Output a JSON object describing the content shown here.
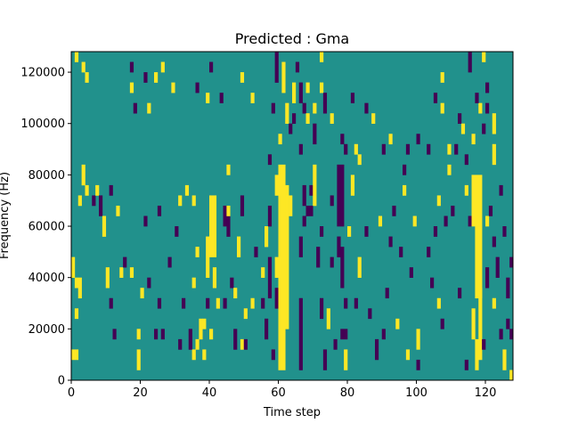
{
  "chart_data": {
    "type": "heatmap",
    "title": "Predicted : Gma",
    "xlabel": "Time step",
    "ylabel": "Frequency (Hz)",
    "xlim": [
      0,
      128
    ],
    "ylim": [
      0,
      128000
    ],
    "xticks": [
      0,
      20,
      40,
      60,
      80,
      100,
      120
    ],
    "yticks": [
      0,
      20000,
      40000,
      60000,
      80000,
      100000,
      120000
    ],
    "grid": false,
    "colors": {
      "background": "#21918c",
      "positive": "#fde725",
      "negative": "#440154"
    },
    "value_levels": {
      "background": 0,
      "positive": 1,
      "negative": -1
    },
    "cells_format": [
      "time_start",
      "time_steps",
      "freq_start_hz",
      "freq_end_hz",
      "value"
    ],
    "cells": [
      [
        1,
        1,
        124000,
        128000,
        1
      ],
      [
        3,
        1,
        120000,
        124000,
        1
      ],
      [
        4,
        1,
        116000,
        120000,
        1
      ],
      [
        17,
        1,
        120000,
        124000,
        -1
      ],
      [
        26,
        1,
        120000,
        124000,
        1
      ],
      [
        21,
        1,
        116000,
        120000,
        -1
      ],
      [
        24,
        1,
        116000,
        120000,
        1
      ],
      [
        17,
        1,
        112000,
        116000,
        1
      ],
      [
        29,
        1,
        112000,
        116000,
        1
      ],
      [
        40,
        1,
        120000,
        124000,
        -1
      ],
      [
        39,
        1,
        108000,
        112000,
        1
      ],
      [
        43,
        1,
        108000,
        112000,
        -1
      ],
      [
        49,
        1,
        116000,
        120000,
        1
      ],
      [
        36,
        1,
        112000,
        116000,
        -1
      ],
      [
        18,
        1,
        104000,
        108000,
        -1
      ],
      [
        22,
        1,
        104000,
        108000,
        1
      ],
      [
        52,
        1,
        108000,
        112000,
        1
      ],
      [
        58,
        1,
        104000,
        108000,
        -1
      ],
      [
        59,
        1,
        116000,
        128000,
        -1
      ],
      [
        61,
        1,
        112000,
        124000,
        1
      ],
      [
        62,
        1,
        100000,
        108000,
        1
      ],
      [
        64,
        1,
        108000,
        116000,
        1
      ],
      [
        65,
        1,
        120000,
        124000,
        -1
      ],
      [
        66,
        1,
        108000,
        116000,
        -1
      ],
      [
        67,
        1,
        104000,
        108000,
        -1
      ],
      [
        68,
        1,
        112000,
        116000,
        1
      ],
      [
        70,
        1,
        104000,
        108000,
        1
      ],
      [
        72,
        1,
        112000,
        116000,
        1
      ],
      [
        73,
        1,
        104000,
        108000,
        -1
      ],
      [
        75,
        1,
        100000,
        104000,
        1
      ],
      [
        60,
        1,
        92000,
        96000,
        1
      ],
      [
        63,
        1,
        96000,
        100000,
        -1
      ],
      [
        64,
        1,
        100000,
        104000,
        -1
      ],
      [
        66,
        1,
        88000,
        92000,
        -1
      ],
      [
        68,
        1,
        100000,
        104000,
        1
      ],
      [
        70,
        1,
        92000,
        100000,
        -1
      ],
      [
        73,
        1,
        108000,
        112000,
        -1
      ],
      [
        72,
        1,
        124000,
        128000,
        1
      ],
      [
        78,
        1,
        92000,
        96000,
        -1
      ],
      [
        79,
        1,
        88000,
        92000,
        -1
      ],
      [
        81,
        1,
        108000,
        112000,
        -1
      ],
      [
        82,
        1,
        88000,
        92000,
        1
      ],
      [
        83,
        1,
        84000,
        88000,
        1
      ],
      [
        85,
        1,
        104000,
        108000,
        -1
      ],
      [
        87,
        1,
        100000,
        104000,
        1
      ],
      [
        90,
        1,
        88000,
        92000,
        -1
      ],
      [
        92,
        1,
        92000,
        96000,
        1
      ],
      [
        97,
        1,
        88000,
        92000,
        -1
      ],
      [
        96,
        1,
        80000,
        84000,
        -1
      ],
      [
        100,
        1,
        92000,
        96000,
        -1
      ],
      [
        103,
        1,
        88000,
        92000,
        -1
      ],
      [
        105,
        1,
        108000,
        112000,
        -1
      ],
      [
        107,
        1,
        104000,
        108000,
        1
      ],
      [
        107,
        1,
        116000,
        120000,
        1
      ],
      [
        109,
        1,
        88000,
        92000,
        1
      ],
      [
        109,
        1,
        80000,
        84000,
        1
      ],
      [
        111,
        1,
        88000,
        92000,
        -1
      ],
      [
        112,
        1,
        100000,
        104000,
        -1
      ],
      [
        113,
        1,
        96000,
        100000,
        1
      ],
      [
        114,
        1,
        84000,
        88000,
        -1
      ],
      [
        116,
        1,
        92000,
        96000,
        1
      ],
      [
        118,
        1,
        104000,
        108000,
        1
      ],
      [
        119,
        1,
        96000,
        100000,
        -1
      ],
      [
        120,
        1,
        112000,
        116000,
        -1
      ],
      [
        122,
        1,
        96000,
        104000,
        1
      ],
      [
        122,
        1,
        84000,
        92000,
        1
      ],
      [
        115,
        1,
        120000,
        128000,
        -1
      ],
      [
        119,
        1,
        124000,
        128000,
        1
      ],
      [
        117,
        1,
        108000,
        112000,
        -1
      ],
      [
        120,
        1,
        104000,
        108000,
        -1
      ],
      [
        0,
        1,
        40000,
        48000,
        1
      ],
      [
        1,
        1,
        36000,
        40000,
        1
      ],
      [
        2,
        1,
        32000,
        40000,
        1
      ],
      [
        1,
        1,
        24000,
        28000,
        1
      ],
      [
        0,
        2,
        8000,
        12000,
        1
      ],
      [
        2,
        1,
        68000,
        72000,
        1
      ],
      [
        3,
        1,
        76000,
        84000,
        1
      ],
      [
        4,
        1,
        72000,
        76000,
        1
      ],
      [
        6,
        1,
        68000,
        72000,
        -1
      ],
      [
        7,
        1,
        72000,
        76000,
        1
      ],
      [
        8,
        1,
        64000,
        72000,
        -1
      ],
      [
        9,
        1,
        56000,
        64000,
        1
      ],
      [
        10,
        1,
        36000,
        44000,
        1
      ],
      [
        11,
        1,
        72000,
        76000,
        -1
      ],
      [
        11,
        1,
        28000,
        32000,
        -1
      ],
      [
        12,
        1,
        16000,
        20000,
        -1
      ],
      [
        13,
        1,
        64000,
        68000,
        1
      ],
      [
        14,
        1,
        40000,
        44000,
        1
      ],
      [
        15,
        1,
        44000,
        48000,
        -1
      ],
      [
        17,
        1,
        40000,
        44000,
        1
      ],
      [
        19,
        1,
        4000,
        12000,
        1
      ],
      [
        19,
        1,
        16000,
        20000,
        1
      ],
      [
        20,
        1,
        32000,
        36000,
        1
      ],
      [
        21,
        1,
        60000,
        64000,
        -1
      ],
      [
        22,
        1,
        36000,
        40000,
        -1
      ],
      [
        24,
        1,
        16000,
        20000,
        -1
      ],
      [
        25,
        1,
        28000,
        32000,
        -1
      ],
      [
        26,
        1,
        16000,
        20000,
        -1
      ],
      [
        25,
        1,
        64000,
        68000,
        -1
      ],
      [
        28,
        1,
        44000,
        48000,
        -1
      ],
      [
        30,
        1,
        56000,
        60000,
        -1
      ],
      [
        31,
        1,
        68000,
        72000,
        1
      ],
      [
        31,
        1,
        12000,
        16000,
        -1
      ],
      [
        32,
        1,
        28000,
        32000,
        -1
      ],
      [
        33,
        1,
        72000,
        76000,
        1
      ],
      [
        34,
        1,
        12000,
        20000,
        -1
      ],
      [
        35,
        1,
        36000,
        40000,
        1
      ],
      [
        36,
        1,
        48000,
        52000,
        1
      ],
      [
        35,
        1,
        68000,
        72000,
        1
      ],
      [
        35,
        1,
        8000,
        12000,
        1
      ],
      [
        36,
        1,
        12000,
        16000,
        1
      ],
      [
        37,
        1,
        16000,
        24000,
        1
      ],
      [
        38,
        1,
        20000,
        24000,
        1
      ],
      [
        38,
        1,
        8000,
        12000,
        1
      ],
      [
        39,
        1,
        40000,
        56000,
        1
      ],
      [
        39,
        1,
        28000,
        32000,
        -1
      ],
      [
        40,
        2,
        48000,
        72000,
        1
      ],
      [
        41,
        1,
        36000,
        44000,
        1
      ],
      [
        42,
        1,
        28000,
        32000,
        1
      ],
      [
        40,
        1,
        16000,
        20000,
        1
      ],
      [
        44,
        1,
        60000,
        68000,
        -1
      ],
      [
        45,
        1,
        56000,
        64000,
        -1
      ],
      [
        45,
        1,
        80000,
        84000,
        1
      ],
      [
        45,
        1,
        64000,
        68000,
        1
      ],
      [
        44,
        1,
        28000,
        32000,
        -1
      ],
      [
        46,
        1,
        36000,
        40000,
        -1
      ],
      [
        47,
        1,
        12000,
        20000,
        -1
      ],
      [
        47,
        1,
        32000,
        36000,
        1
      ],
      [
        48,
        1,
        48000,
        56000,
        1
      ],
      [
        49,
        1,
        64000,
        72000,
        -1
      ],
      [
        49,
        1,
        12000,
        16000,
        1
      ],
      [
        50,
        1,
        24000,
        28000,
        1
      ],
      [
        50,
        1,
        12000,
        16000,
        -1
      ],
      [
        52,
        1,
        28000,
        32000,
        1
      ],
      [
        53,
        1,
        48000,
        52000,
        -1
      ],
      [
        55,
        1,
        40000,
        44000,
        1
      ],
      [
        55,
        1,
        28000,
        32000,
        -1
      ],
      [
        56,
        1,
        52000,
        60000,
        1
      ],
      [
        56,
        1,
        16000,
        24000,
        -1
      ],
      [
        57,
        1,
        60000,
        68000,
        -1
      ],
      [
        57,
        1,
        32000,
        48000,
        -1
      ],
      [
        58,
        1,
        8000,
        12000,
        -1
      ],
      [
        57,
        1,
        84000,
        88000,
        -1
      ],
      [
        59,
        1,
        72000,
        80000,
        1
      ],
      [
        59,
        1,
        40000,
        48000,
        1
      ],
      [
        59,
        1,
        28000,
        36000,
        -1
      ],
      [
        60,
        2,
        4000,
        84000,
        1
      ],
      [
        62,
        1,
        20000,
        76000,
        1
      ],
      [
        63,
        1,
        64000,
        72000,
        1
      ],
      [
        66,
        1,
        4000,
        32000,
        -1
      ],
      [
        66,
        1,
        48000,
        56000,
        -1
      ],
      [
        67,
        1,
        60000,
        64000,
        -1
      ],
      [
        67,
        1,
        68000,
        76000,
        -1
      ],
      [
        68,
        2,
        64000,
        68000,
        -1
      ],
      [
        69,
        1,
        72000,
        76000,
        -1
      ],
      [
        70,
        1,
        68000,
        84000,
        1
      ],
      [
        71,
        1,
        44000,
        52000,
        -1
      ],
      [
        72,
        1,
        56000,
        60000,
        -1
      ],
      [
        72,
        1,
        24000,
        32000,
        -1
      ],
      [
        73,
        1,
        4000,
        12000,
        -1
      ],
      [
        74,
        1,
        20000,
        28000,
        1
      ],
      [
        75,
        1,
        68000,
        72000,
        -1
      ],
      [
        75,
        1,
        44000,
        48000,
        -1
      ],
      [
        76,
        1,
        12000,
        16000,
        -1
      ],
      [
        77,
        1,
        48000,
        56000,
        -1
      ],
      [
        77,
        2,
        60000,
        84000,
        -1
      ],
      [
        78,
        1,
        36000,
        52000,
        -1
      ],
      [
        78,
        2,
        16000,
        20000,
        -1
      ],
      [
        79,
        1,
        28000,
        32000,
        -1
      ],
      [
        79,
        1,
        4000,
        12000,
        1
      ],
      [
        80,
        1,
        56000,
        60000,
        1
      ],
      [
        81,
        1,
        72000,
        80000,
        1
      ],
      [
        82,
        1,
        28000,
        32000,
        -1
      ],
      [
        83,
        1,
        40000,
        48000,
        1
      ],
      [
        85,
        1,
        56000,
        60000,
        -1
      ],
      [
        86,
        1,
        24000,
        28000,
        -1
      ],
      [
        88,
        1,
        8000,
        16000,
        -1
      ],
      [
        89,
        1,
        60000,
        64000,
        1
      ],
      [
        90,
        1,
        16000,
        20000,
        -1
      ],
      [
        91,
        1,
        32000,
        36000,
        -1
      ],
      [
        92,
        1,
        52000,
        56000,
        -1
      ],
      [
        93,
        1,
        64000,
        68000,
        -1
      ],
      [
        94,
        1,
        20000,
        24000,
        1
      ],
      [
        95,
        1,
        48000,
        52000,
        -1
      ],
      [
        96,
        1,
        72000,
        76000,
        1
      ],
      [
        97,
        1,
        8000,
        12000,
        1
      ],
      [
        98,
        1,
        40000,
        44000,
        -1
      ],
      [
        99,
        1,
        60000,
        64000,
        1
      ],
      [
        100,
        1,
        12000,
        20000,
        1
      ],
      [
        100,
        1,
        4000,
        8000,
        -1
      ],
      [
        103,
        1,
        48000,
        52000,
        -1
      ],
      [
        104,
        1,
        36000,
        40000,
        -1
      ],
      [
        105,
        1,
        56000,
        60000,
        -1
      ],
      [
        106,
        1,
        68000,
        72000,
        1
      ],
      [
        106,
        1,
        28000,
        32000,
        1
      ],
      [
        108,
        1,
        60000,
        64000,
        -1
      ],
      [
        107,
        1,
        20000,
        24000,
        -1
      ],
      [
        110,
        1,
        64000,
        68000,
        -1
      ],
      [
        112,
        1,
        32000,
        36000,
        -1
      ],
      [
        114,
        1,
        4000,
        8000,
        -1
      ],
      [
        114,
        1,
        72000,
        76000,
        1
      ],
      [
        115,
        1,
        60000,
        64000,
        -1
      ],
      [
        116,
        3,
        60000,
        80000,
        1
      ],
      [
        117,
        2,
        32000,
        60000,
        1
      ],
      [
        117,
        1,
        4000,
        16000,
        1
      ],
      [
        118,
        1,
        8000,
        36000,
        1
      ],
      [
        116,
        1,
        16000,
        28000,
        1
      ],
      [
        119,
        1,
        12000,
        16000,
        -1
      ],
      [
        120,
        1,
        36000,
        44000,
        -1
      ],
      [
        120,
        1,
        60000,
        64000,
        1
      ],
      [
        121,
        1,
        64000,
        68000,
        -1
      ],
      [
        122,
        1,
        28000,
        32000,
        1
      ],
      [
        122,
        1,
        52000,
        56000,
        -1
      ],
      [
        123,
        1,
        40000,
        48000,
        -1
      ],
      [
        124,
        1,
        16000,
        20000,
        -1
      ],
      [
        124,
        1,
        72000,
        76000,
        -1
      ],
      [
        125,
        1,
        56000,
        60000,
        -1
      ],
      [
        125,
        1,
        4000,
        12000,
        1
      ],
      [
        126,
        1,
        20000,
        24000,
        -1
      ],
      [
        126,
        1,
        32000,
        40000,
        -1
      ],
      [
        127,
        1,
        16000,
        20000,
        -1
      ],
      [
        127,
        1,
        0,
        4000,
        1
      ],
      [
        127,
        1,
        44000,
        48000,
        -1
      ]
    ]
  }
}
